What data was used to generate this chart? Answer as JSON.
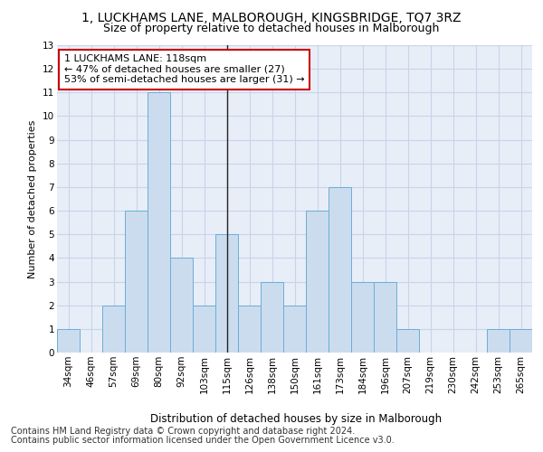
{
  "title1": "1, LUCKHAMS LANE, MALBOROUGH, KINGSBRIDGE, TQ7 3RZ",
  "title2": "Size of property relative to detached houses in Malborough",
  "xlabel": "Distribution of detached houses by size in Malborough",
  "ylabel": "Number of detached properties",
  "categories": [
    "34sqm",
    "46sqm",
    "57sqm",
    "69sqm",
    "80sqm",
    "92sqm",
    "103sqm",
    "115sqm",
    "126sqm",
    "138sqm",
    "150sqm",
    "161sqm",
    "173sqm",
    "184sqm",
    "196sqm",
    "207sqm",
    "219sqm",
    "230sqm",
    "242sqm",
    "253sqm",
    "265sqm"
  ],
  "values": [
    1,
    0,
    2,
    6,
    11,
    4,
    2,
    5,
    2,
    3,
    2,
    6,
    7,
    3,
    3,
    1,
    0,
    0,
    0,
    1,
    1
  ],
  "bar_color": "#ccdcef",
  "bar_edge_color": "#6baed6",
  "property_bar_index": 7,
  "annotation_text": "1 LUCKHAMS LANE: 118sqm\n← 47% of detached houses are smaller (27)\n53% of semi-detached houses are larger (31) →",
  "annotation_box_color": "#ffffff",
  "annotation_box_edge_color": "#cc0000",
  "ylim": [
    0,
    13
  ],
  "yticks": [
    0,
    1,
    2,
    3,
    4,
    5,
    6,
    7,
    8,
    9,
    10,
    11,
    12,
    13
  ],
  "grid_color": "#c8d4e8",
  "background_color": "#e8eef8",
  "footer_line1": "Contains HM Land Registry data © Crown copyright and database right 2024.",
  "footer_line2": "Contains public sector information licensed under the Open Government Licence v3.0.",
  "title1_fontsize": 10,
  "title2_fontsize": 9,
  "xlabel_fontsize": 8.5,
  "ylabel_fontsize": 8,
  "tick_fontsize": 7.5,
  "annotation_fontsize": 8,
  "footer_fontsize": 7
}
